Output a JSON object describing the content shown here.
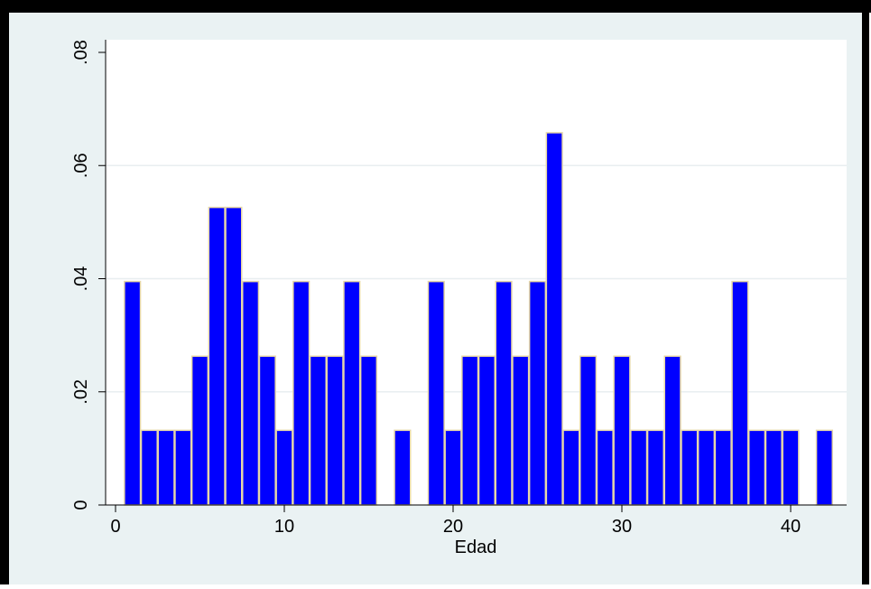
{
  "chart_data": {
    "type": "bar",
    "title": "",
    "xlabel": "Edad",
    "ylabel": "",
    "xlim": [
      0,
      43
    ],
    "ylim": [
      0,
      0.08
    ],
    "x_ticks": [
      0,
      10,
      20,
      30,
      40
    ],
    "x_tick_labels": [
      "0",
      "10",
      "20",
      "30",
      "40"
    ],
    "y_ticks": [
      0,
      0.02,
      0.04,
      0.06,
      0.08
    ],
    "y_tick_labels": [
      "0",
      ".02",
      ".04",
      ".06",
      ".08"
    ],
    "grid": "horizontal",
    "bin_width": 1,
    "x": [
      1,
      2,
      3,
      4,
      5,
      6,
      7,
      8,
      9,
      10,
      11,
      12,
      13,
      14,
      15,
      17,
      19,
      20,
      21,
      22,
      23,
      24,
      25,
      26,
      27,
      28,
      29,
      30,
      31,
      32,
      33,
      34,
      35,
      36,
      37,
      38,
      39,
      40,
      42
    ],
    "values": [
      0.0395,
      0.0132,
      0.0132,
      0.0132,
      0.0263,
      0.0526,
      0.0526,
      0.0395,
      0.0263,
      0.0132,
      0.0395,
      0.0263,
      0.0263,
      0.0395,
      0.0263,
      0.0132,
      0.0395,
      0.0132,
      0.0263,
      0.0263,
      0.0395,
      0.0263,
      0.0395,
      0.0658,
      0.0132,
      0.0263,
      0.0132,
      0.0263,
      0.0132,
      0.0132,
      0.0263,
      0.0132,
      0.0132,
      0.0132,
      0.0395,
      0.0132,
      0.0132,
      0.0132,
      0.0132
    ],
    "colors": {
      "bar_fill": "#0000ff",
      "bar_edge": "#e6d7a8",
      "plot_background": "#ffffff",
      "outer_background": "#eaf2f3",
      "frame_border": "#000000",
      "grid": "#e8eef0"
    }
  }
}
